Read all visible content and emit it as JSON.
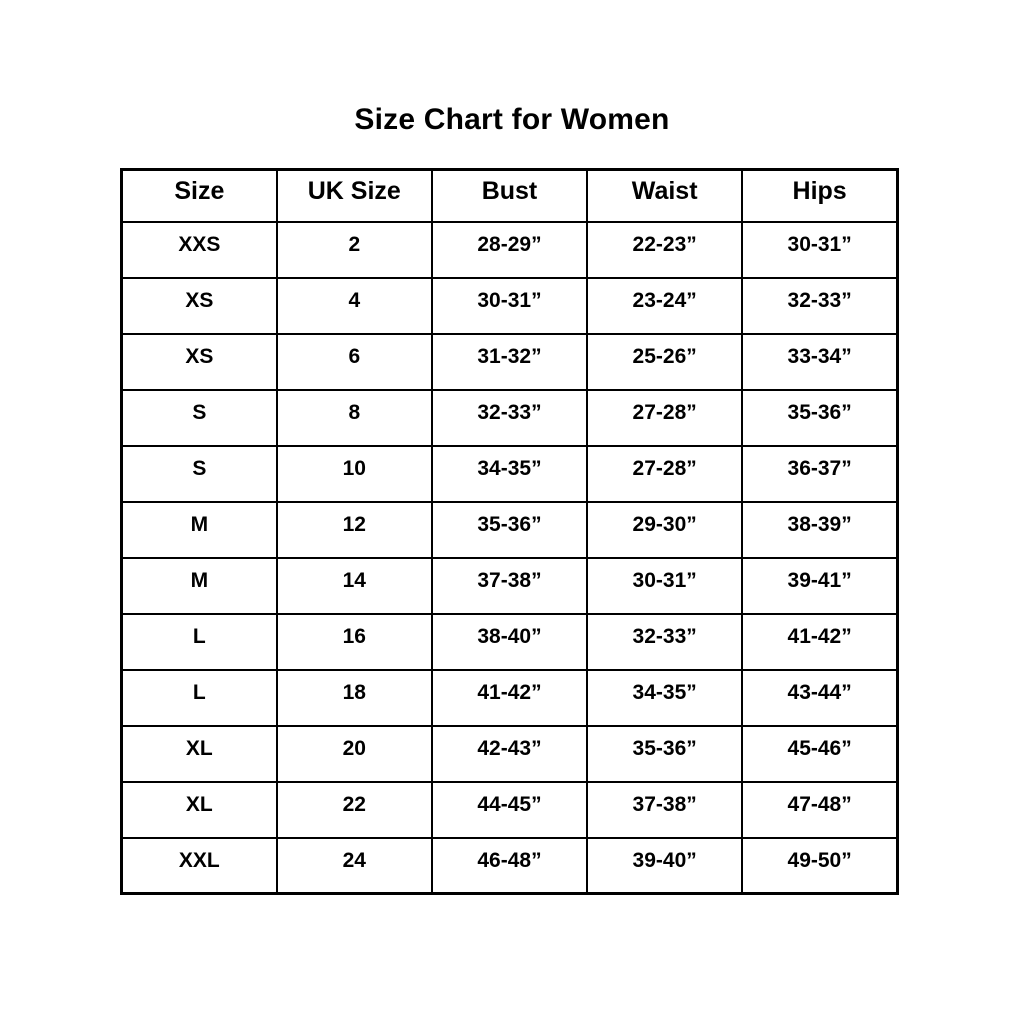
{
  "title": "Size Chart for Women",
  "chart_data": {
    "type": "table",
    "title": "Size Chart for Women",
    "columns": [
      "Size",
      "UK Size",
      "Bust",
      "Waist",
      "Hips"
    ],
    "rows": [
      [
        "XXS",
        "2",
        "28-29”",
        "22-23”",
        "30-31”"
      ],
      [
        "XS",
        "4",
        "30-31”",
        "23-24”",
        "32-33”"
      ],
      [
        "XS",
        "6",
        "31-32”",
        "25-26”",
        "33-34”"
      ],
      [
        "S",
        "8",
        "32-33”",
        "27-28”",
        "35-36”"
      ],
      [
        "S",
        "10",
        "34-35”",
        "27-28”",
        "36-37”"
      ],
      [
        "M",
        "12",
        "35-36”",
        "29-30”",
        "38-39”"
      ],
      [
        "M",
        "14",
        "37-38”",
        "30-31”",
        "39-41”"
      ],
      [
        "L",
        "16",
        "38-40”",
        "32-33”",
        "41-42”"
      ],
      [
        "L",
        "18",
        "41-42”",
        "34-35”",
        "43-44”"
      ],
      [
        "XL",
        "20",
        "42-43”",
        "35-36”",
        "45-46”"
      ],
      [
        "XL",
        "22",
        "44-45”",
        "37-38”",
        "47-48”"
      ],
      [
        "XXL",
        "24",
        "46-48”",
        "39-40”",
        "49-50”"
      ]
    ],
    "layout": {
      "legend": "none",
      "grid": "full-borders",
      "header_position": "top"
    },
    "colors": {
      "background": "#ffffff",
      "border": "#000000",
      "text": "#000000"
    }
  }
}
